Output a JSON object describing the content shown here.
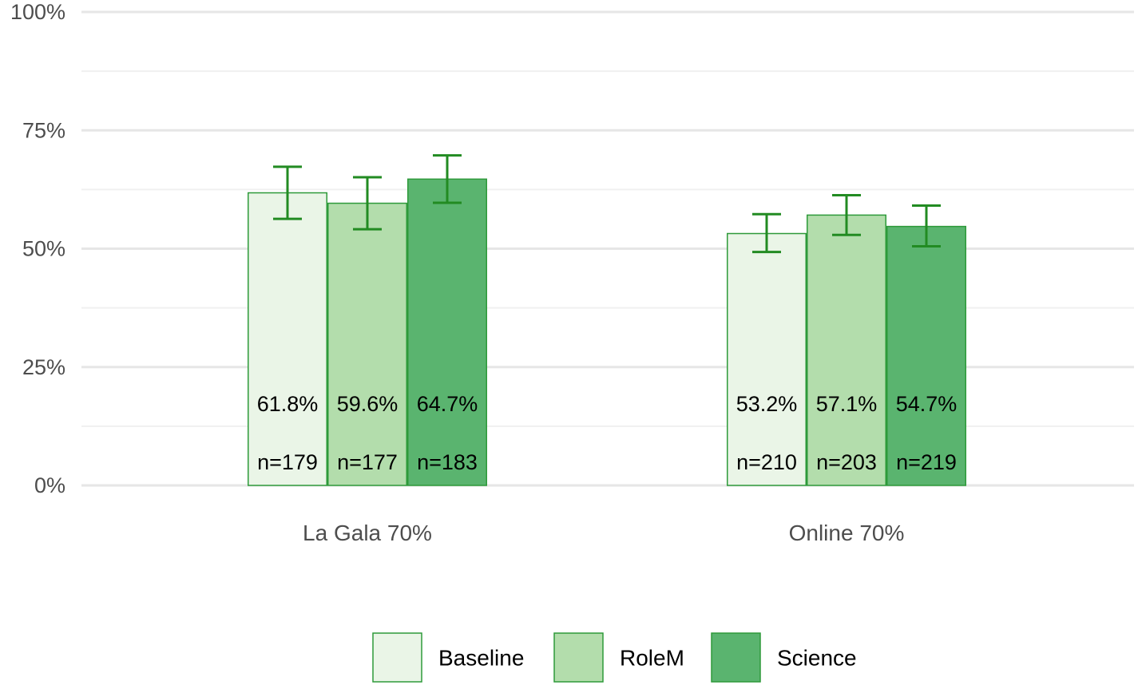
{
  "chart_data": {
    "type": "bar",
    "title": "",
    "xlabel": "",
    "ylabel": "",
    "ylim": [
      0,
      100
    ],
    "y_ticks": [
      "0%",
      "25%",
      "50%",
      "75%",
      "100%"
    ],
    "y_tick_values": [
      0,
      25,
      50,
      75,
      100
    ],
    "categories": [
      "La Gala 70%",
      "Online 70%"
    ],
    "grid": true,
    "legend_position": "bottom",
    "series": [
      {
        "name": "Baseline",
        "color": "#eaf5e7",
        "values": [
          61.8,
          53.2
        ],
        "error_low": [
          56.3,
          49.3
        ],
        "error_high": [
          67.3,
          57.3
        ],
        "value_labels": [
          "61.8%",
          "53.2%"
        ],
        "n_labels": [
          "n=179",
          "n=210"
        ]
      },
      {
        "name": "RoleM",
        "color": "#b3ddac",
        "values": [
          59.6,
          57.1
        ],
        "error_low": [
          54.1,
          52.9
        ],
        "error_high": [
          65.1,
          61.3
        ],
        "value_labels": [
          "59.6%",
          "57.1%"
        ],
        "n_labels": [
          "n=177",
          "n=203"
        ]
      },
      {
        "name": "Science",
        "color": "#5ab46f",
        "values": [
          64.7,
          54.7
        ],
        "error_low": [
          59.7,
          50.5
        ],
        "error_high": [
          69.7,
          59.1
        ],
        "value_labels": [
          "64.7%",
          "54.7%"
        ],
        "n_labels": [
          "n=183",
          "n=219"
        ]
      }
    ],
    "bar_stroke_color": "#2e9a3a",
    "error_bar_color": "#228b22"
  }
}
